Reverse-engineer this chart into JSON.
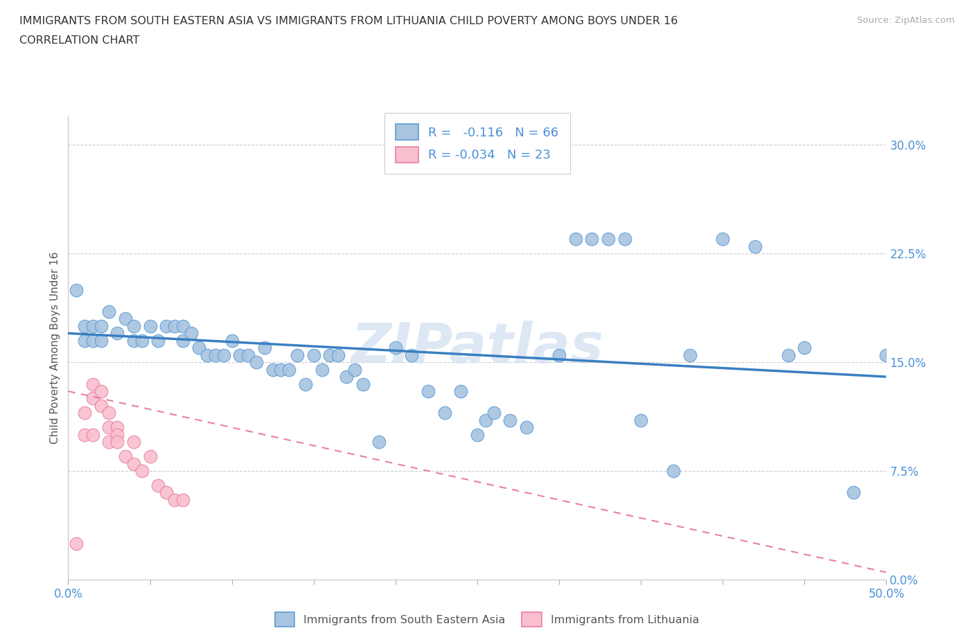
{
  "title": "IMMIGRANTS FROM SOUTH EASTERN ASIA VS IMMIGRANTS FROM LITHUANIA CHILD POVERTY AMONG BOYS UNDER 16",
  "subtitle": "CORRELATION CHART",
  "source": "Source: ZipAtlas.com",
  "ylabel": "Child Poverty Among Boys Under 16",
  "xlim": [
    0.0,
    0.5
  ],
  "ylim": [
    0.0,
    0.32
  ],
  "yticks": [
    0.0,
    0.075,
    0.15,
    0.225,
    0.3
  ],
  "ytick_labels": [
    "0.0%",
    "7.5%",
    "15.0%",
    "22.5%",
    "30.0%"
  ],
  "xtick_positions": [
    0.0,
    0.05,
    0.1,
    0.15,
    0.2,
    0.25,
    0.3,
    0.35,
    0.4,
    0.45,
    0.5
  ],
  "xtick_labels": [
    "0.0%",
    "",
    "",
    "",
    "",
    "",
    "",
    "",
    "",
    "",
    "50.0%"
  ],
  "blue_R": "-0.116",
  "blue_N": "66",
  "pink_R": "-0.034",
  "pink_N": "23",
  "blue_fill": "#a8c4e0",
  "blue_edge": "#5b9bd5",
  "pink_fill": "#f9bfce",
  "pink_edge": "#e87fa0",
  "blue_line_color": "#3a7fc1",
  "pink_line_color": "#e87fa0",
  "legend_blue_label": "Immigrants from South Eastern Asia",
  "legend_pink_label": "Immigrants from Lithuania",
  "watermark": "ZIPatlas",
  "blue_scatter_x": [
    0.005,
    0.01,
    0.01,
    0.015,
    0.015,
    0.02,
    0.02,
    0.025,
    0.03,
    0.035,
    0.04,
    0.04,
    0.045,
    0.05,
    0.055,
    0.06,
    0.065,
    0.07,
    0.07,
    0.075,
    0.08,
    0.085,
    0.09,
    0.095,
    0.1,
    0.105,
    0.11,
    0.115,
    0.12,
    0.125,
    0.13,
    0.135,
    0.14,
    0.145,
    0.15,
    0.155,
    0.16,
    0.165,
    0.17,
    0.175,
    0.18,
    0.19,
    0.2,
    0.21,
    0.22,
    0.23,
    0.24,
    0.25,
    0.255,
    0.26,
    0.27,
    0.28,
    0.3,
    0.31,
    0.33,
    0.35,
    0.37,
    0.4,
    0.42,
    0.45,
    0.48,
    0.5,
    0.32,
    0.34,
    0.38,
    0.44
  ],
  "blue_scatter_y": [
    0.2,
    0.175,
    0.165,
    0.175,
    0.165,
    0.175,
    0.165,
    0.185,
    0.17,
    0.18,
    0.175,
    0.165,
    0.165,
    0.175,
    0.165,
    0.175,
    0.175,
    0.175,
    0.165,
    0.17,
    0.16,
    0.155,
    0.155,
    0.155,
    0.165,
    0.155,
    0.155,
    0.15,
    0.16,
    0.145,
    0.145,
    0.145,
    0.155,
    0.135,
    0.155,
    0.145,
    0.155,
    0.155,
    0.14,
    0.145,
    0.135,
    0.095,
    0.16,
    0.155,
    0.13,
    0.115,
    0.13,
    0.1,
    0.11,
    0.115,
    0.11,
    0.105,
    0.155,
    0.235,
    0.235,
    0.11,
    0.075,
    0.235,
    0.23,
    0.16,
    0.06,
    0.155,
    0.235,
    0.235,
    0.155,
    0.155
  ],
  "pink_scatter_x": [
    0.005,
    0.01,
    0.01,
    0.015,
    0.015,
    0.015,
    0.02,
    0.02,
    0.025,
    0.025,
    0.025,
    0.03,
    0.03,
    0.03,
    0.035,
    0.04,
    0.04,
    0.045,
    0.05,
    0.055,
    0.06,
    0.065,
    0.07
  ],
  "pink_scatter_y": [
    0.025,
    0.115,
    0.1,
    0.135,
    0.125,
    0.1,
    0.13,
    0.12,
    0.115,
    0.105,
    0.095,
    0.105,
    0.1,
    0.095,
    0.085,
    0.095,
    0.08,
    0.075,
    0.085,
    0.065,
    0.06,
    0.055,
    0.055
  ],
  "blue_trendline_x": [
    0.0,
    0.5
  ],
  "blue_trendline_y": [
    0.17,
    0.14
  ],
  "pink_trendline_x": [
    0.0,
    0.5
  ],
  "pink_trendline_y": [
    0.13,
    0.005
  ]
}
